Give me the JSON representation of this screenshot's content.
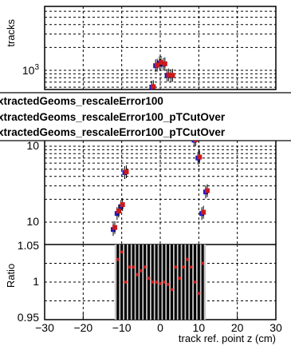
{
  "chart_data": [
    {
      "panel": "top",
      "type": "scatter",
      "ylabel": "tracks",
      "yscale": "log",
      "ytick_labels": [
        "10",
        "10",
        "10"
      ],
      "ytick_exponents": [
        "3",
        "",
        ""
      ],
      "series": [
        {
          "color": "#1a1acc",
          "points": [
            [
              -12,
              8
            ],
            [
              -11,
              13
            ],
            [
              -10,
              16
            ],
            [
              -9,
              45
            ],
            [
              -2,
              600
            ],
            [
              -1,
              1150
            ],
            [
              0,
              1250
            ],
            [
              1,
              1200
            ],
            [
              2,
              860
            ],
            [
              3,
              850
            ],
            [
              9,
              120
            ],
            [
              10,
              70
            ],
            [
              11,
              13
            ],
            [
              12,
              25
            ]
          ]
        },
        {
          "color": "#cc1a1a",
          "points": [
            [
              -12,
              8.5
            ],
            [
              -11,
              14
            ],
            [
              -10,
              17
            ],
            [
              -9,
              46
            ],
            [
              -2,
              610
            ],
            [
              -1,
              1170
            ],
            [
              0,
              1270
            ],
            [
              1,
              1220
            ],
            [
              2,
              870
            ],
            [
              3,
              860
            ],
            [
              9,
              122
            ],
            [
              10,
              72
            ],
            [
              11,
              13.5
            ],
            [
              12,
              26
            ]
          ]
        }
      ]
    },
    {
      "panel": "ratio",
      "type": "scatter",
      "ylabel": "Ratio",
      "xlabel": "track ref. point z (cm)",
      "xlim": [
        -30,
        30
      ],
      "ylim": [
        0.95,
        1.05
      ],
      "xticks": [
        "−30",
        "−20",
        "−10",
        "0",
        "10",
        "20",
        "30"
      ],
      "yticks": [
        "0.95",
        "1",
        "1.05"
      ],
      "points": [
        [
          -11,
          1.03
        ],
        [
          -10,
          1.04
        ],
        [
          -9,
          1.0
        ],
        [
          -8,
          1.02
        ],
        [
          -7,
          1.02
        ],
        [
          -6,
          1.01
        ],
        [
          -5,
          1.015
        ],
        [
          -4,
          1.02
        ],
        [
          -3,
          1.005
        ],
        [
          -2,
          1.0
        ],
        [
          -1,
          1.0
        ],
        [
          0,
          0.998
        ],
        [
          1,
          1.0
        ],
        [
          2,
          0.997
        ],
        [
          3,
          0.99
        ],
        [
          4,
          1.02
        ],
        [
          5,
          1.005
        ],
        [
          6,
          1.02
        ],
        [
          7,
          1.03
        ],
        [
          8,
          1.02
        ],
        [
          9,
          1.0
        ],
        [
          10,
          0.985
        ],
        [
          11,
          1.025
        ]
      ]
    }
  ],
  "legend": {
    "entries": [
      "xtractedGeoms_rescaleError100",
      "xtractedGeoms_rescaleError100_pTCutOver",
      "xtractedGeoms_rescaleError100_pTCutOver"
    ]
  }
}
